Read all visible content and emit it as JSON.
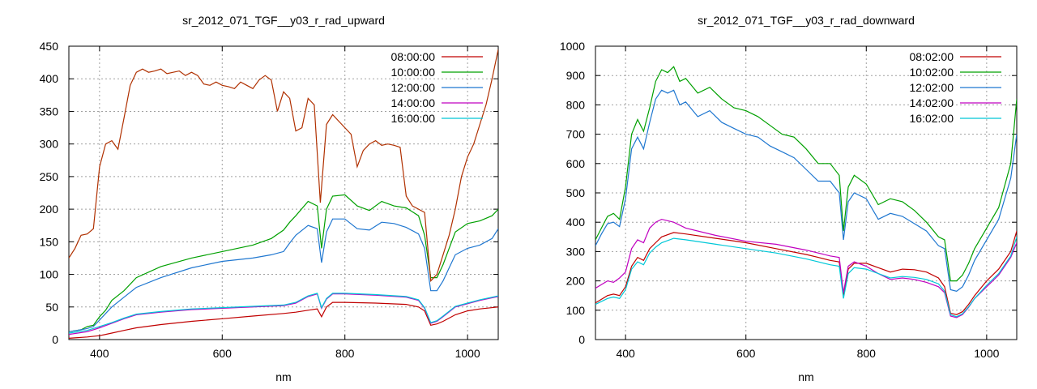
{
  "chart_data": [
    {
      "type": "line",
      "title": "sr_2012_071_TGF__y03_r_rad_upward",
      "xlabel": "nm",
      "ylabel": "",
      "xlim": [
        350,
        1050
      ],
      "ylim": [
        0,
        450
      ],
      "xticks": [
        400,
        600,
        800,
        1000
      ],
      "yticks": [
        0,
        50,
        100,
        150,
        200,
        250,
        300,
        350,
        400,
        450
      ],
      "grid": true,
      "legend_position": "top-right",
      "series": [
        {
          "name": "08:00:00",
          "color": "#c00000",
          "x": [
            350,
            380,
            400,
            420,
            440,
            460,
            500,
            550,
            600,
            650,
            700,
            720,
            740,
            755,
            762,
            770,
            780,
            800,
            850,
            900,
            920,
            930,
            940,
            950,
            960,
            980,
            1000,
            1020,
            1050
          ],
          "y": [
            2,
            4,
            6,
            10,
            14,
            18,
            23,
            28,
            32,
            36,
            40,
            42,
            45,
            47,
            35,
            50,
            57,
            57,
            56,
            54,
            50,
            44,
            22,
            24,
            28,
            38,
            44,
            47,
            50
          ]
        },
        {
          "name": "10:00:00",
          "color": "#00a000",
          "x": [
            350,
            370,
            380,
            390,
            400,
            410,
            420,
            440,
            460,
            500,
            550,
            600,
            650,
            680,
            700,
            710,
            720,
            740,
            755,
            762,
            770,
            780,
            800,
            820,
            840,
            860,
            880,
            900,
            920,
            930,
            940,
            950,
            960,
            970,
            980,
            1000,
            1020,
            1040,
            1050
          ],
          "y": [
            12,
            15,
            20,
            22,
            35,
            45,
            60,
            75,
            95,
            112,
            125,
            135,
            145,
            155,
            168,
            180,
            190,
            212,
            205,
            140,
            200,
            220,
            222,
            205,
            198,
            212,
            205,
            202,
            190,
            160,
            95,
            95,
            115,
            140,
            165,
            178,
            182,
            190,
            200
          ]
        },
        {
          "name": "12:00:00",
          "color": "#1f77d0",
          "x": [
            350,
            370,
            380,
            390,
            400,
            410,
            420,
            440,
            460,
            500,
            550,
            600,
            650,
            680,
            700,
            710,
            720,
            740,
            755,
            762,
            770,
            780,
            800,
            820,
            840,
            860,
            880,
            900,
            920,
            930,
            940,
            950,
            960,
            970,
            980,
            1000,
            1020,
            1040,
            1050
          ],
          "y": [
            12,
            15,
            17,
            20,
            30,
            40,
            50,
            65,
            80,
            95,
            110,
            120,
            125,
            130,
            135,
            148,
            160,
            175,
            170,
            118,
            165,
            185,
            185,
            170,
            168,
            180,
            178,
            172,
            162,
            140,
            75,
            75,
            90,
            110,
            130,
            140,
            145,
            155,
            170
          ]
        },
        {
          "name": "14:00:00",
          "color": "#c000c0",
          "x": [
            350,
            380,
            400,
            420,
            440,
            460,
            500,
            550,
            600,
            650,
            700,
            720,
            740,
            755,
            762,
            770,
            780,
            800,
            850,
            900,
            920,
            930,
            940,
            950,
            960,
            980,
            1000,
            1020,
            1050
          ],
          "y": [
            8,
            12,
            18,
            25,
            32,
            38,
            42,
            46,
            48,
            50,
            52,
            56,
            66,
            70,
            48,
            62,
            70,
            70,
            68,
            65,
            60,
            48,
            25,
            28,
            35,
            50,
            55,
            60,
            66
          ]
        },
        {
          "name": "16:00:00",
          "color": "#00c8d8",
          "x": [
            350,
            380,
            400,
            420,
            440,
            460,
            500,
            550,
            600,
            650,
            700,
            720,
            740,
            755,
            762,
            770,
            780,
            800,
            850,
            900,
            920,
            930,
            940,
            950,
            960,
            980,
            1000,
            1020,
            1050
          ],
          "y": [
            10,
            14,
            20,
            26,
            33,
            39,
            43,
            47,
            49,
            51,
            53,
            57,
            67,
            71,
            49,
            63,
            71,
            71,
            69,
            66,
            61,
            49,
            26,
            29,
            36,
            51,
            56,
            61,
            67
          ]
        },
        {
          "name": "",
          "color": "#b03000",
          "x": [
            350,
            360,
            370,
            380,
            390,
            400,
            410,
            420,
            430,
            440,
            450,
            460,
            470,
            480,
            490,
            500,
            510,
            520,
            530,
            540,
            550,
            560,
            570,
            580,
            590,
            600,
            610,
            620,
            630,
            640,
            650,
            660,
            670,
            680,
            690,
            700,
            710,
            720,
            730,
            740,
            750,
            760,
            770,
            780,
            790,
            800,
            810,
            820,
            830,
            840,
            850,
            860,
            870,
            880,
            890,
            900,
            910,
            920,
            930,
            940,
            950,
            960,
            970,
            980,
            990,
            1000,
            1010,
            1020,
            1030,
            1040,
            1050
          ],
          "y": [
            125,
            140,
            160,
            162,
            170,
            265,
            300,
            305,
            292,
            340,
            390,
            410,
            415,
            410,
            412,
            415,
            408,
            410,
            412,
            405,
            410,
            405,
            392,
            390,
            395,
            390,
            388,
            385,
            395,
            390,
            385,
            398,
            405,
            398,
            350,
            380,
            370,
            320,
            325,
            370,
            360,
            210,
            330,
            345,
            335,
            325,
            315,
            265,
            290,
            300,
            305,
            298,
            300,
            298,
            295,
            220,
            205,
            200,
            195,
            90,
            100,
            130,
            160,
            200,
            250,
            280,
            300,
            330,
            360,
            400,
            445
          ]
        }
      ]
    },
    {
      "type": "line",
      "title": "sr_2012_071_TGF__y03_r_rad_downward",
      "xlabel": "nm",
      "ylabel": "",
      "xlim": [
        350,
        1050
      ],
      "ylim": [
        0,
        1000
      ],
      "xticks": [
        400,
        600,
        800,
        1000
      ],
      "yticks": [
        0,
        100,
        200,
        300,
        400,
        500,
        600,
        700,
        800,
        900,
        1000
      ],
      "grid": true,
      "legend_position": "top-right",
      "series": [
        {
          "name": "08:02:00",
          "color": "#c00000",
          "x": [
            350,
            370,
            380,
            390,
            400,
            410,
            420,
            430,
            440,
            450,
            460,
            480,
            500,
            550,
            600,
            650,
            700,
            720,
            740,
            755,
            762,
            770,
            780,
            800,
            820,
            840,
            860,
            880,
            900,
            920,
            930,
            940,
            950,
            960,
            970,
            980,
            1000,
            1020,
            1040,
            1050
          ],
          "y": [
            125,
            150,
            155,
            150,
            180,
            250,
            280,
            270,
            310,
            330,
            350,
            365,
            360,
            345,
            330,
            310,
            290,
            280,
            270,
            265,
            150,
            240,
            260,
            260,
            245,
            230,
            240,
            238,
            230,
            210,
            180,
            90,
            85,
            95,
            120,
            150,
            200,
            240,
            300,
            370
          ]
        },
        {
          "name": "10:02:00",
          "color": "#00a000",
          "x": [
            350,
            360,
            370,
            380,
            390,
            400,
            410,
            420,
            430,
            440,
            450,
            460,
            470,
            480,
            490,
            500,
            520,
            540,
            560,
            580,
            600,
            620,
            640,
            660,
            680,
            700,
            720,
            740,
            755,
            762,
            770,
            780,
            800,
            820,
            840,
            860,
            880,
            900,
            920,
            930,
            940,
            950,
            960,
            970,
            980,
            1000,
            1020,
            1040,
            1050
          ],
          "y": [
            340,
            380,
            420,
            430,
            410,
            520,
            700,
            750,
            710,
            790,
            880,
            920,
            910,
            930,
            880,
            890,
            840,
            860,
            820,
            790,
            780,
            760,
            730,
            700,
            690,
            650,
            600,
            600,
            560,
            370,
            520,
            560,
            530,
            460,
            480,
            470,
            440,
            400,
            350,
            340,
            200,
            200,
            220,
            260,
            310,
            380,
            450,
            600,
            820
          ]
        },
        {
          "name": "12:02:00",
          "color": "#1f77d0",
          "x": [
            350,
            360,
            370,
            380,
            390,
            400,
            410,
            420,
            430,
            440,
            450,
            460,
            470,
            480,
            490,
            500,
            520,
            540,
            560,
            580,
            600,
            620,
            640,
            660,
            680,
            700,
            720,
            740,
            755,
            762,
            770,
            780,
            800,
            820,
            840,
            860,
            880,
            900,
            920,
            930,
            940,
            950,
            960,
            970,
            980,
            1000,
            1020,
            1040,
            1050
          ],
          "y": [
            320,
            360,
            395,
            400,
            385,
            480,
            650,
            690,
            650,
            740,
            820,
            850,
            840,
            850,
            800,
            810,
            760,
            780,
            740,
            720,
            700,
            690,
            660,
            640,
            620,
            580,
            540,
            540,
            500,
            340,
            470,
            500,
            480,
            410,
            430,
            420,
            395,
            370,
            320,
            310,
            170,
            165,
            180,
            220,
            270,
            340,
            410,
            550,
            700
          ]
        },
        {
          "name": "14:02:00",
          "color": "#c000c0",
          "x": [
            350,
            370,
            380,
            390,
            400,
            410,
            420,
            430,
            440,
            450,
            460,
            480,
            500,
            550,
            600,
            650,
            700,
            720,
            740,
            755,
            762,
            770,
            780,
            800,
            820,
            840,
            860,
            880,
            900,
            920,
            930,
            940,
            950,
            960,
            970,
            980,
            1000,
            1020,
            1040,
            1050
          ],
          "y": [
            175,
            200,
            195,
            210,
            230,
            310,
            340,
            330,
            380,
            400,
            410,
            400,
            380,
            355,
            335,
            325,
            305,
            295,
            285,
            280,
            160,
            250,
            265,
            250,
            225,
            205,
            210,
            205,
            195,
            180,
            160,
            80,
            75,
            85,
            110,
            140,
            180,
            220,
            280,
            330
          ]
        },
        {
          "name": "16:02:00",
          "color": "#00c8d8",
          "x": [
            350,
            370,
            380,
            390,
            400,
            410,
            420,
            430,
            440,
            450,
            460,
            480,
            500,
            550,
            600,
            650,
            700,
            720,
            740,
            755,
            762,
            770,
            780,
            800,
            820,
            840,
            860,
            880,
            900,
            920,
            930,
            940,
            950,
            960,
            970,
            980,
            1000,
            1020,
            1040,
            1050
          ],
          "y": [
            120,
            140,
            145,
            140,
            170,
            240,
            265,
            255,
            295,
            315,
            330,
            345,
            340,
            325,
            310,
            295,
            275,
            265,
            255,
            250,
            140,
            225,
            245,
            240,
            225,
            210,
            215,
            212,
            205,
            190,
            165,
            85,
            78,
            88,
            112,
            140,
            185,
            225,
            285,
            350
          ]
        }
      ]
    }
  ]
}
